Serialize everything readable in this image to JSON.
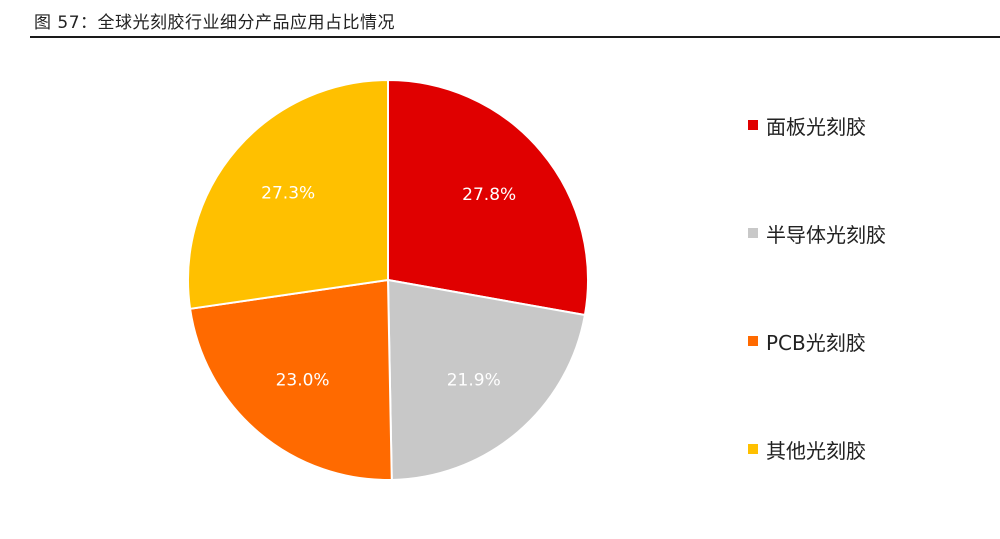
{
  "caption": "图  57：全球光刻胶行业细分产品应用占比情况",
  "chart_data": {
    "type": "pie",
    "categories": [
      "面板光刻胶",
      "半导体光刻胶",
      "PCB光刻胶",
      "其他光刻胶"
    ],
    "values": [
      27.8,
      21.9,
      23.0,
      27.3
    ],
    "labels": [
      "27.8%",
      "21.9%",
      "23.0%",
      "27.3%"
    ],
    "colors": [
      "#E00000",
      "#C8C8C8",
      "#FF6A00",
      "#FFC000"
    ],
    "start": "12 o'clock",
    "direction": "clockwise",
    "legend_position": "right"
  }
}
